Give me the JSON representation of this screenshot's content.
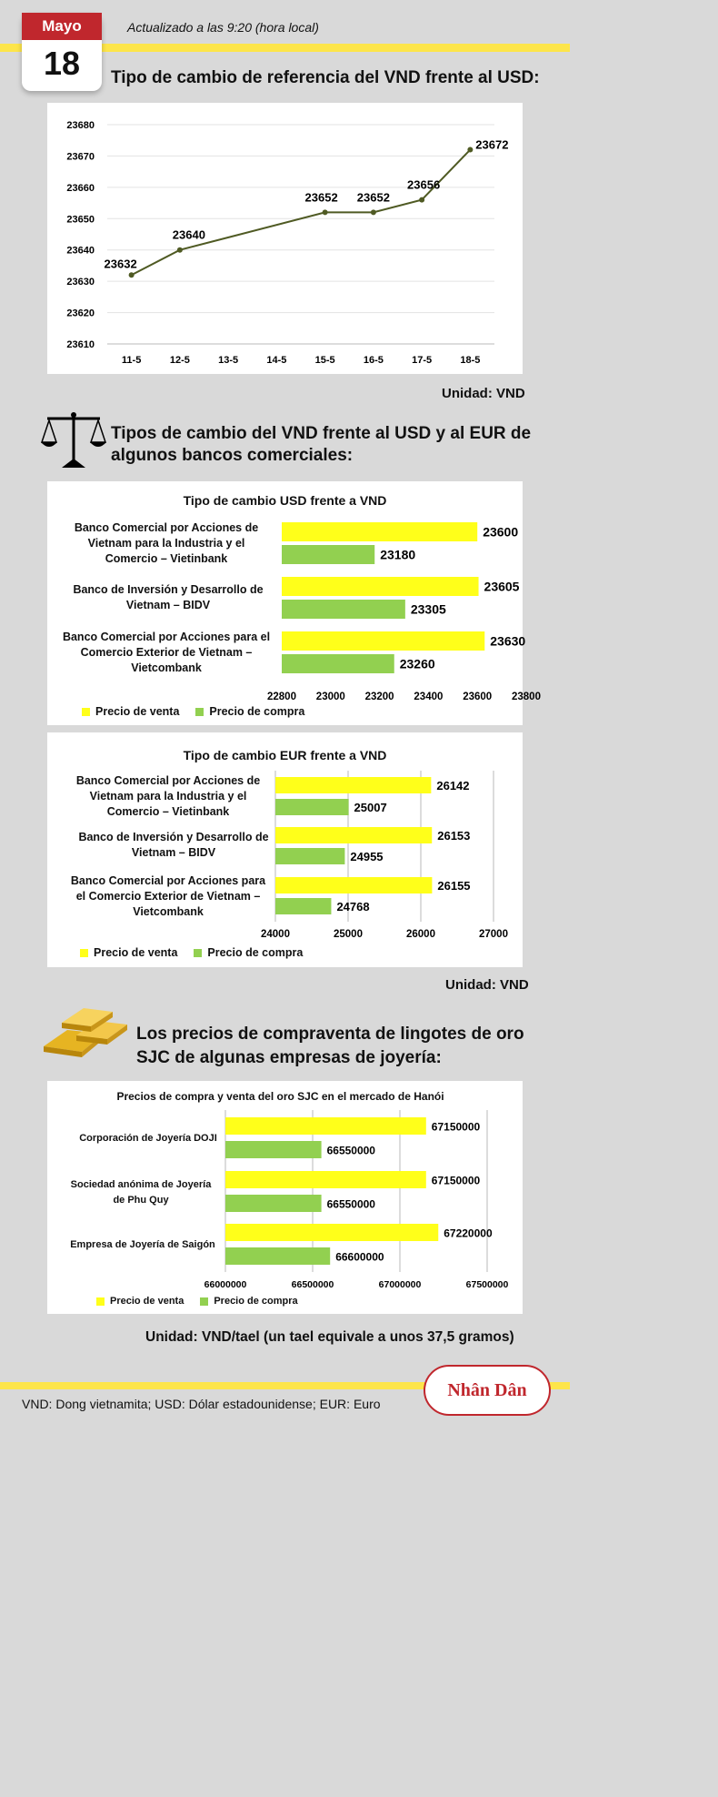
{
  "header": {
    "month": "Mayo",
    "day": "18",
    "updated": "Actualizado a las 9:20 (hora local)"
  },
  "section1": {
    "title": "Tipo de cambio de referencia del VND frente al USD:",
    "unit": "Unidad: VND"
  },
  "section2": {
    "title_line1": "Tipos de cambio del VND frente al USD y al EUR de",
    "title_line2": "algunos bancos comerciales:",
    "unit": "Unidad: VND"
  },
  "section3": {
    "title_line1": "Los precios de compraventa de lingotes de oro",
    "title_line2": "SJC de algunas empresas de joyería:",
    "unit": "Unidad: VND/tael (un tael equivale a unos 37,5 gramos)"
  },
  "legend": {
    "sell": "Precio de venta",
    "buy": "Precio de compra"
  },
  "colors": {
    "sell": "#ffff1a",
    "buy": "#92d050",
    "line": "#4f5a23",
    "accent": "#c0272d",
    "stripe": "#fde54a"
  },
  "footer": {
    "note": "VND: Dong vietnamita; USD: Dólar estadounidense; EUR: Euro",
    "logo": "Nhân Dân"
  },
  "chart_data": [
    {
      "type": "line",
      "title": "",
      "categories": [
        "11-5",
        "12-5",
        "13-5",
        "14-5",
        "15-5",
        "16-5",
        "17-5",
        "18-5"
      ],
      "ylim": [
        23610,
        23680
      ],
      "yticks": [
        23610,
        23620,
        23630,
        23640,
        23650,
        23660,
        23670,
        23680
      ],
      "points": [
        {
          "x": "11-5",
          "y": 23632,
          "label": "23632"
        },
        {
          "x": "12-5",
          "y": 23640,
          "label": "23640"
        },
        {
          "x": "15-5",
          "y": 23652,
          "label": "23652"
        },
        {
          "x": "16-5",
          "y": 23652,
          "label": "23652"
        },
        {
          "x": "17-5",
          "y": 23656,
          "label": "23656"
        },
        {
          "x": "18-5",
          "y": 23672,
          "label": "23672"
        }
      ],
      "grid": true
    },
    {
      "type": "bar",
      "orientation": "horizontal",
      "title": "Tipo de cambio USD frente a VND",
      "categories": [
        "Banco Comercial por Acciones de Vietnam para la Industria y el Comercio – Vietinbank",
        "Banco de Inversión y Desarrollo de Vietnam – BIDV",
        "Banco Comercial por Acciones para el Comercio Exterior de Vietnam – Vietcombank"
      ],
      "series": [
        {
          "name": "Precio de venta",
          "values": [
            23600,
            23605,
            23630
          ]
        },
        {
          "name": "Precio de compra",
          "values": [
            23180,
            23305,
            23260
          ]
        }
      ],
      "xlim": [
        22800,
        23800
      ],
      "xticks": [
        22800,
        23000,
        23200,
        23400,
        23600,
        23800
      ],
      "legend": "bottom-left"
    },
    {
      "type": "bar",
      "orientation": "horizontal",
      "title": "Tipo de cambio EUR frente a VND",
      "categories": [
        "Banco Comercial por Acciones de Vietnam para la Industria y el Comercio – Vietinbank",
        "Banco de Inversión y Desarrollo de Vietnam – BIDV",
        "Banco Comercial por Acciones para el Comercio Exterior de Vietnam – Vietcombank"
      ],
      "series": [
        {
          "name": "Precio de venta",
          "values": [
            26142,
            26153,
            26155
          ]
        },
        {
          "name": "Precio de compra",
          "values": [
            25007,
            24955,
            24768
          ]
        }
      ],
      "xlim": [
        24000,
        27000
      ],
      "xticks": [
        24000,
        25000,
        26000,
        27000
      ],
      "legend": "bottom-left"
    },
    {
      "type": "bar",
      "orientation": "horizontal",
      "title": "Precios de compra y venta del oro SJC en el mercado de Hanói",
      "categories": [
        "Corporación de Joyería DOJI",
        "Sociedad anónima de Joyería de Phu Quy",
        "Empresa de Joyería de Saigón"
      ],
      "series": [
        {
          "name": "Precio de venta",
          "values": [
            67150000,
            67150000,
            67220000
          ]
        },
        {
          "name": "Precio de compra",
          "values": [
            66550000,
            66550000,
            66600000
          ]
        }
      ],
      "xlim": [
        66000000,
        67500000
      ],
      "xticks": [
        66000000,
        66500000,
        67000000,
        67500000
      ],
      "legend": "bottom-left"
    }
  ]
}
